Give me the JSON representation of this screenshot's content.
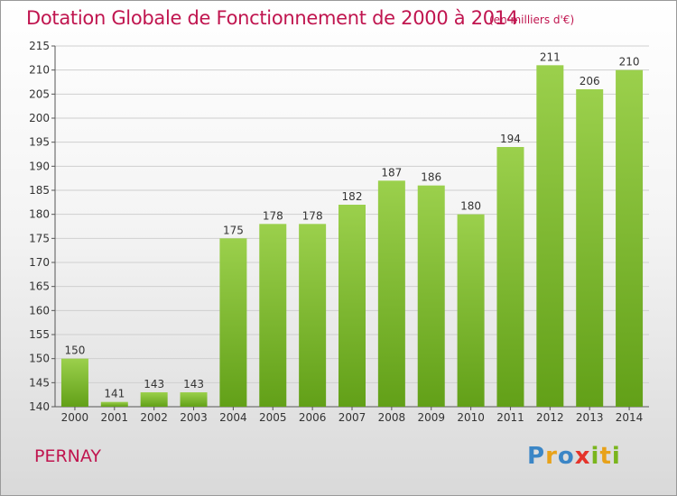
{
  "title": "Dotation Globale de Fonctionnement de 2000 à 2014",
  "unit_note": "(en milliers d'€)",
  "commune": "PERNAY",
  "logo": {
    "text": "Proxiti",
    "letters": [
      {
        "ch": "P",
        "color": "#3b86c6"
      },
      {
        "ch": "r",
        "color": "#e8a21a"
      },
      {
        "ch": "o",
        "color": "#3b86c6"
      },
      {
        "ch": "x",
        "color": "#e5342b"
      },
      {
        "ch": "i",
        "color": "#7ab51d"
      },
      {
        "ch": "t",
        "color": "#e8a21a"
      },
      {
        "ch": "i",
        "color": "#7ab51d"
      }
    ]
  },
  "colors": {
    "title": "#c0154f",
    "bar_light": "#9bd04c",
    "bar_dark": "#62a018",
    "grid": "#cfcfcf"
  },
  "chart_data": {
    "type": "bar",
    "categories": [
      "2000",
      "2001",
      "2002",
      "2003",
      "2004",
      "2005",
      "2006",
      "2007",
      "2008",
      "2009",
      "2010",
      "2011",
      "2012",
      "2013",
      "2014"
    ],
    "values": [
      150,
      141,
      143,
      143,
      175,
      178,
      178,
      182,
      187,
      186,
      180,
      194,
      211,
      206,
      210
    ],
    "ylim": [
      140,
      215
    ],
    "yticks": [
      140,
      145,
      150,
      155,
      160,
      165,
      170,
      175,
      180,
      185,
      190,
      195,
      200,
      205,
      210,
      215
    ],
    "grid": true,
    "data_labels": true
  }
}
